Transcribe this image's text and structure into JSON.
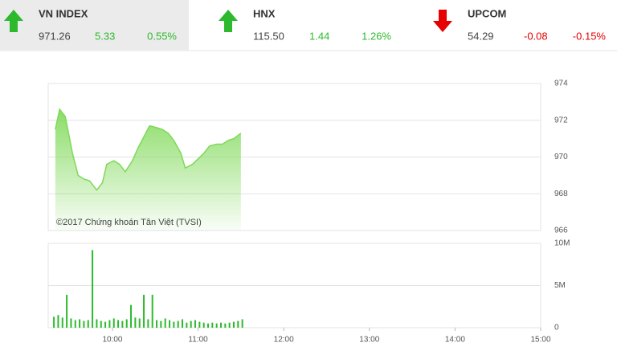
{
  "indices": [
    {
      "name": "VN INDEX",
      "value": "971.26",
      "change": "5.33",
      "percent": "0.55%",
      "trend": "up",
      "color": "#2db92d",
      "selected": true
    },
    {
      "name": "HNX",
      "value": "115.50",
      "change": "1.44",
      "percent": "1.26%",
      "trend": "up",
      "color": "#2db92d",
      "selected": false
    },
    {
      "name": "UPCOM",
      "value": "54.29",
      "change": "-0.08",
      "percent": "-0.15%",
      "trend": "down",
      "color": "#e60000",
      "selected": false
    }
  ],
  "chart_data": [
    {
      "type": "area",
      "annotation": "©2017 Chứng khoán Tân Việt (TVSI)",
      "color": "#7ed957",
      "x": [
        "09:20",
        "09:23",
        "09:27",
        "09:32",
        "09:36",
        "09:40",
        "09:44",
        "09:49",
        "09:53",
        "09:56",
        "10:01",
        "10:05",
        "10:09",
        "10:14",
        "10:18",
        "10:22",
        "10:26",
        "10:31",
        "10:35",
        "10:39",
        "10:43",
        "10:48",
        "10:51",
        "10:56",
        "11:00",
        "11:04",
        "11:08",
        "11:13",
        "11:17",
        "11:21",
        "11:25",
        "11:30"
      ],
      "values": [
        971.5,
        972.6,
        972.2,
        970.2,
        969.0,
        968.8,
        968.7,
        968.2,
        968.6,
        969.6,
        969.8,
        969.6,
        969.2,
        969.8,
        970.5,
        971.1,
        971.7,
        971.6,
        971.5,
        971.3,
        970.9,
        970.2,
        969.4,
        969.6,
        969.9,
        970.2,
        970.6,
        970.7,
        970.7,
        970.9,
        971.0,
        971.3
      ],
      "xlim": [
        "09:15",
        "15:00"
      ],
      "ylim": [
        966,
        974
      ],
      "yticks": [
        966,
        968,
        970,
        972,
        974
      ],
      "grid": true
    },
    {
      "type": "bar",
      "color": "#2db92d",
      "x": [
        "09:19",
        "09:22",
        "09:25",
        "09:28",
        "09:31",
        "09:34",
        "09:37",
        "09:40",
        "09:43",
        "09:46",
        "09:49",
        "09:52",
        "09:55",
        "09:58",
        "10:01",
        "10:04",
        "10:07",
        "10:10",
        "10:13",
        "10:16",
        "10:19",
        "10:22",
        "10:25",
        "10:28",
        "10:31",
        "10:34",
        "10:37",
        "10:40",
        "10:43",
        "10:46",
        "10:49",
        "10:52",
        "10:55",
        "10:58",
        "11:01",
        "11:04",
        "11:07",
        "11:10",
        "11:13",
        "11:16",
        "11:19",
        "11:22",
        "11:25",
        "11:28",
        "11:31"
      ],
      "values": [
        1300000,
        1500000,
        1200000,
        3900000,
        1100000,
        900000,
        1000000,
        800000,
        900000,
        9200000,
        1000000,
        800000,
        700000,
        900000,
        1100000,
        900000,
        800000,
        1000000,
        2700000,
        1200000,
        1100000,
        3900000,
        1000000,
        3900000,
        900000,
        800000,
        1100000,
        900000,
        700000,
        800000,
        1000000,
        600000,
        800000,
        900000,
        700000,
        600000,
        500000,
        600000,
        500000,
        600000,
        500000,
        600000,
        700000,
        800000,
        1000000
      ],
      "xlim": [
        "09:15",
        "15:00"
      ],
      "xticks": [
        "10:00",
        "11:00",
        "12:00",
        "13:00",
        "14:00",
        "15:00"
      ],
      "ylim": [
        0,
        10000000
      ],
      "yticks": [
        0,
        {
          "value": 5000000,
          "label": "5M"
        },
        {
          "value": 10000000,
          "label": "10M"
        }
      ],
      "grid": true
    }
  ]
}
